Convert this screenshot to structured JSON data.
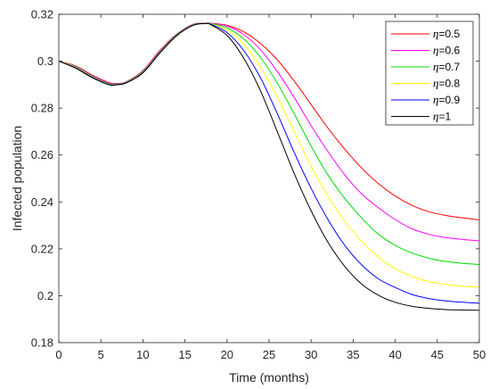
{
  "chart_data": {
    "type": "line",
    "title": "",
    "xlabel": "Time (months)",
    "ylabel": "Infected population",
    "xlim": [
      0,
      50
    ],
    "ylim": [
      0.18,
      0.32
    ],
    "xticks": [
      0,
      5,
      10,
      15,
      20,
      25,
      30,
      35,
      40,
      45,
      50
    ],
    "yticks": [
      0.18,
      0.2,
      0.22,
      0.24,
      0.26,
      0.28,
      0.3,
      0.32
    ],
    "xtick_labels": [
      "0",
      "5",
      "10",
      "15",
      "20",
      "25",
      "30",
      "35",
      "40",
      "45",
      "50"
    ],
    "ytick_labels": [
      "0.18",
      "0.2",
      "0.22",
      "0.24",
      "0.26",
      "0.28",
      "0.3",
      "0.32"
    ],
    "grid": false,
    "legend_position": "top-right",
    "x": [
      0,
      2,
      4,
      6,
      7,
      8,
      10,
      12,
      14,
      16,
      17.5,
      18,
      20,
      22,
      24,
      26,
      28,
      30,
      32,
      34,
      36,
      38,
      40,
      42,
      44,
      46,
      48,
      50
    ],
    "series": [
      {
        "name": "η=0.5",
        "color": "#ff0000",
        "values": [
          0.3,
          0.298,
          0.294,
          0.2908,
          0.2905,
          0.2912,
          0.296,
          0.3045,
          0.3115,
          0.3158,
          0.3162,
          0.3162,
          0.3153,
          0.3125,
          0.3075,
          0.3005,
          0.2915,
          0.2815,
          0.2715,
          0.2625,
          0.2545,
          0.2478,
          0.2425,
          0.2385,
          0.2358,
          0.2342,
          0.2332,
          0.2323
        ]
      },
      {
        "name": "η=0.6",
        "color": "#ff00ff",
        "values": [
          0.3,
          0.2978,
          0.2937,
          0.2905,
          0.2904,
          0.2911,
          0.2958,
          0.3042,
          0.3113,
          0.3157,
          0.3162,
          0.3162,
          0.315,
          0.3113,
          0.3048,
          0.2955,
          0.2845,
          0.2725,
          0.2615,
          0.2515,
          0.2435,
          0.2375,
          0.2325,
          0.2285,
          0.2262,
          0.2248,
          0.224,
          0.2234
        ]
      },
      {
        "name": "η=0.7",
        "color": "#00dd00",
        "values": [
          0.3,
          0.2976,
          0.2935,
          0.2903,
          0.2903,
          0.291,
          0.2956,
          0.304,
          0.3112,
          0.3156,
          0.3162,
          0.3161,
          0.3142,
          0.3095,
          0.3015,
          0.2905,
          0.2775,
          0.2638,
          0.2515,
          0.2415,
          0.2332,
          0.2262,
          0.2215,
          0.2182,
          0.216,
          0.2146,
          0.2138,
          0.2133
        ]
      },
      {
        "name": "η=0.8",
        "color": "#ffff00",
        "values": [
          0.3,
          0.2974,
          0.2933,
          0.2901,
          0.2902,
          0.2909,
          0.2954,
          0.3038,
          0.311,
          0.3155,
          0.3162,
          0.316,
          0.3132,
          0.3072,
          0.2975,
          0.2845,
          0.2698,
          0.2552,
          0.2425,
          0.2318,
          0.2232,
          0.2165,
          0.2115,
          0.2082,
          0.206,
          0.2048,
          0.204,
          0.2036
        ]
      },
      {
        "name": "η=0.9",
        "color": "#0000ff",
        "values": [
          0.3,
          0.2972,
          0.2931,
          0.29,
          0.2901,
          0.2908,
          0.2952,
          0.3036,
          0.3109,
          0.3154,
          0.3161,
          0.3159,
          0.3122,
          0.3045,
          0.2928,
          0.2775,
          0.261,
          0.2458,
          0.2325,
          0.2215,
          0.2132,
          0.2072,
          0.2035,
          0.2005,
          0.1988,
          0.1978,
          0.1972,
          0.1968
        ]
      },
      {
        "name": "η=1",
        "color": "#000000",
        "values": [
          0.3,
          0.297,
          0.2929,
          0.2899,
          0.29,
          0.2907,
          0.295,
          0.3034,
          0.3108,
          0.3153,
          0.316,
          0.3157,
          0.311,
          0.3012,
          0.2872,
          0.2698,
          0.252,
          0.2362,
          0.2228,
          0.2125,
          0.205,
          0.2002,
          0.1972,
          0.1955,
          0.1946,
          0.1941,
          0.1939,
          0.1938
        ]
      }
    ]
  }
}
